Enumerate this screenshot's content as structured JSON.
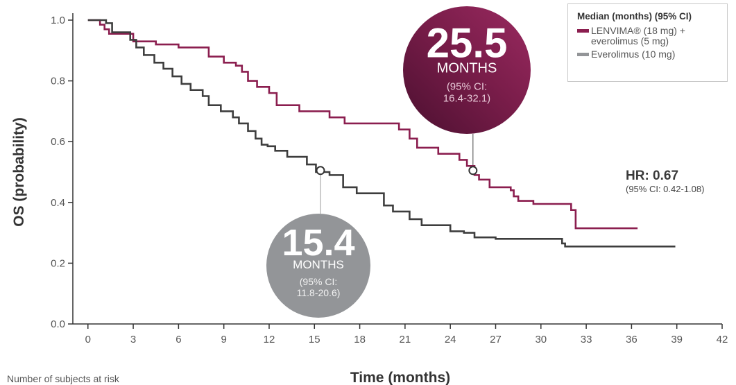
{
  "chart_data": {
    "type": "line",
    "step": true,
    "xlabel": "Time (months)",
    "ylabel": "OS (probability)",
    "xlim": [
      -1,
      42
    ],
    "ylim": [
      0,
      1.0
    ],
    "xticks": [
      "0",
      "3",
      "6",
      "9",
      "12",
      "15",
      "18",
      "21",
      "24",
      "27",
      "30",
      "33",
      "36",
      "39",
      "42"
    ],
    "yticks": [
      "0.0",
      "0.2",
      "0.4",
      "0.6",
      "0.8",
      "1.0"
    ],
    "series": [
      {
        "name": "LENVIMA® (18 mg) + everolimus (5 mg)",
        "color": "#8b1e4f",
        "x": [
          0,
          0.8,
          1.1,
          1.4,
          3.0,
          4.5,
          6.0,
          8.0,
          9.0,
          9.8,
          10.2,
          10.6,
          11.2,
          12.0,
          12.5,
          14.0,
          16.0,
          17.0,
          19.0,
          20.6,
          21.3,
          21.8,
          23.2,
          24.6,
          25.1,
          25.6,
          25.9,
          26.6,
          28.0,
          28.2,
          28.5,
          29.5,
          32.0,
          32.3,
          36.4
        ],
        "y": [
          1.0,
          0.985,
          0.97,
          0.955,
          0.93,
          0.92,
          0.91,
          0.88,
          0.86,
          0.85,
          0.83,
          0.8,
          0.78,
          0.76,
          0.72,
          0.7,
          0.68,
          0.66,
          0.66,
          0.64,
          0.61,
          0.58,
          0.56,
          0.54,
          0.52,
          0.49,
          0.475,
          0.45,
          0.44,
          0.42,
          0.405,
          0.395,
          0.375,
          0.315,
          0.315
        ]
      },
      {
        "name": "Everolimus (10 mg)",
        "color": "#3d3d3d",
        "x": [
          0,
          1.2,
          1.6,
          2.8,
          3.2,
          3.7,
          4.4,
          5.0,
          5.6,
          6.2,
          6.8,
          7.6,
          8.0,
          8.8,
          9.6,
          10.0,
          10.6,
          11.1,
          11.5,
          11.9,
          12.4,
          13.2,
          14.5,
          15.1,
          16.0,
          16.9,
          17.8,
          19.6,
          20.2,
          21.3,
          22.1,
          24.0,
          24.9,
          25.6,
          27.0,
          31.4,
          31.6,
          38.9
        ],
        "y": [
          1.0,
          0.99,
          0.96,
          0.935,
          0.91,
          0.885,
          0.86,
          0.84,
          0.815,
          0.79,
          0.77,
          0.75,
          0.72,
          0.7,
          0.68,
          0.66,
          0.635,
          0.61,
          0.59,
          0.585,
          0.57,
          0.55,
          0.525,
          0.5,
          0.49,
          0.45,
          0.43,
          0.39,
          0.37,
          0.345,
          0.325,
          0.305,
          0.3,
          0.285,
          0.28,
          0.265,
          0.255,
          0.255
        ]
      }
    ],
    "annotations": [
      {
        "big": "25.5",
        "unit": "MONTHS",
        "ci1": "(95% CI:",
        "ci2": "16.4-32.1)",
        "median_x": 25.5,
        "median_y": 0.505,
        "fill": "#7a1d4a"
      },
      {
        "big": "15.4",
        "unit": "MONTHS",
        "ci1": "(95% CI:",
        "ci2": "11.8-20.6)",
        "median_x": 15.4,
        "median_y": 0.505,
        "fill": "#939598"
      }
    ]
  },
  "legend": {
    "title": "Median (months) (95% CI)",
    "entries": [
      {
        "label": "LENVIMA® (18 mg) +\neverolimus (5 mg)",
        "color": "#8b1e4f"
      },
      {
        "label": "Everolimus (10 mg)",
        "color": "#939598"
      }
    ]
  },
  "hr": {
    "main": "HR: 0.67",
    "ci": "(95% CI: 0.42-1.08)"
  },
  "footnote": "Number of subjects at risk"
}
